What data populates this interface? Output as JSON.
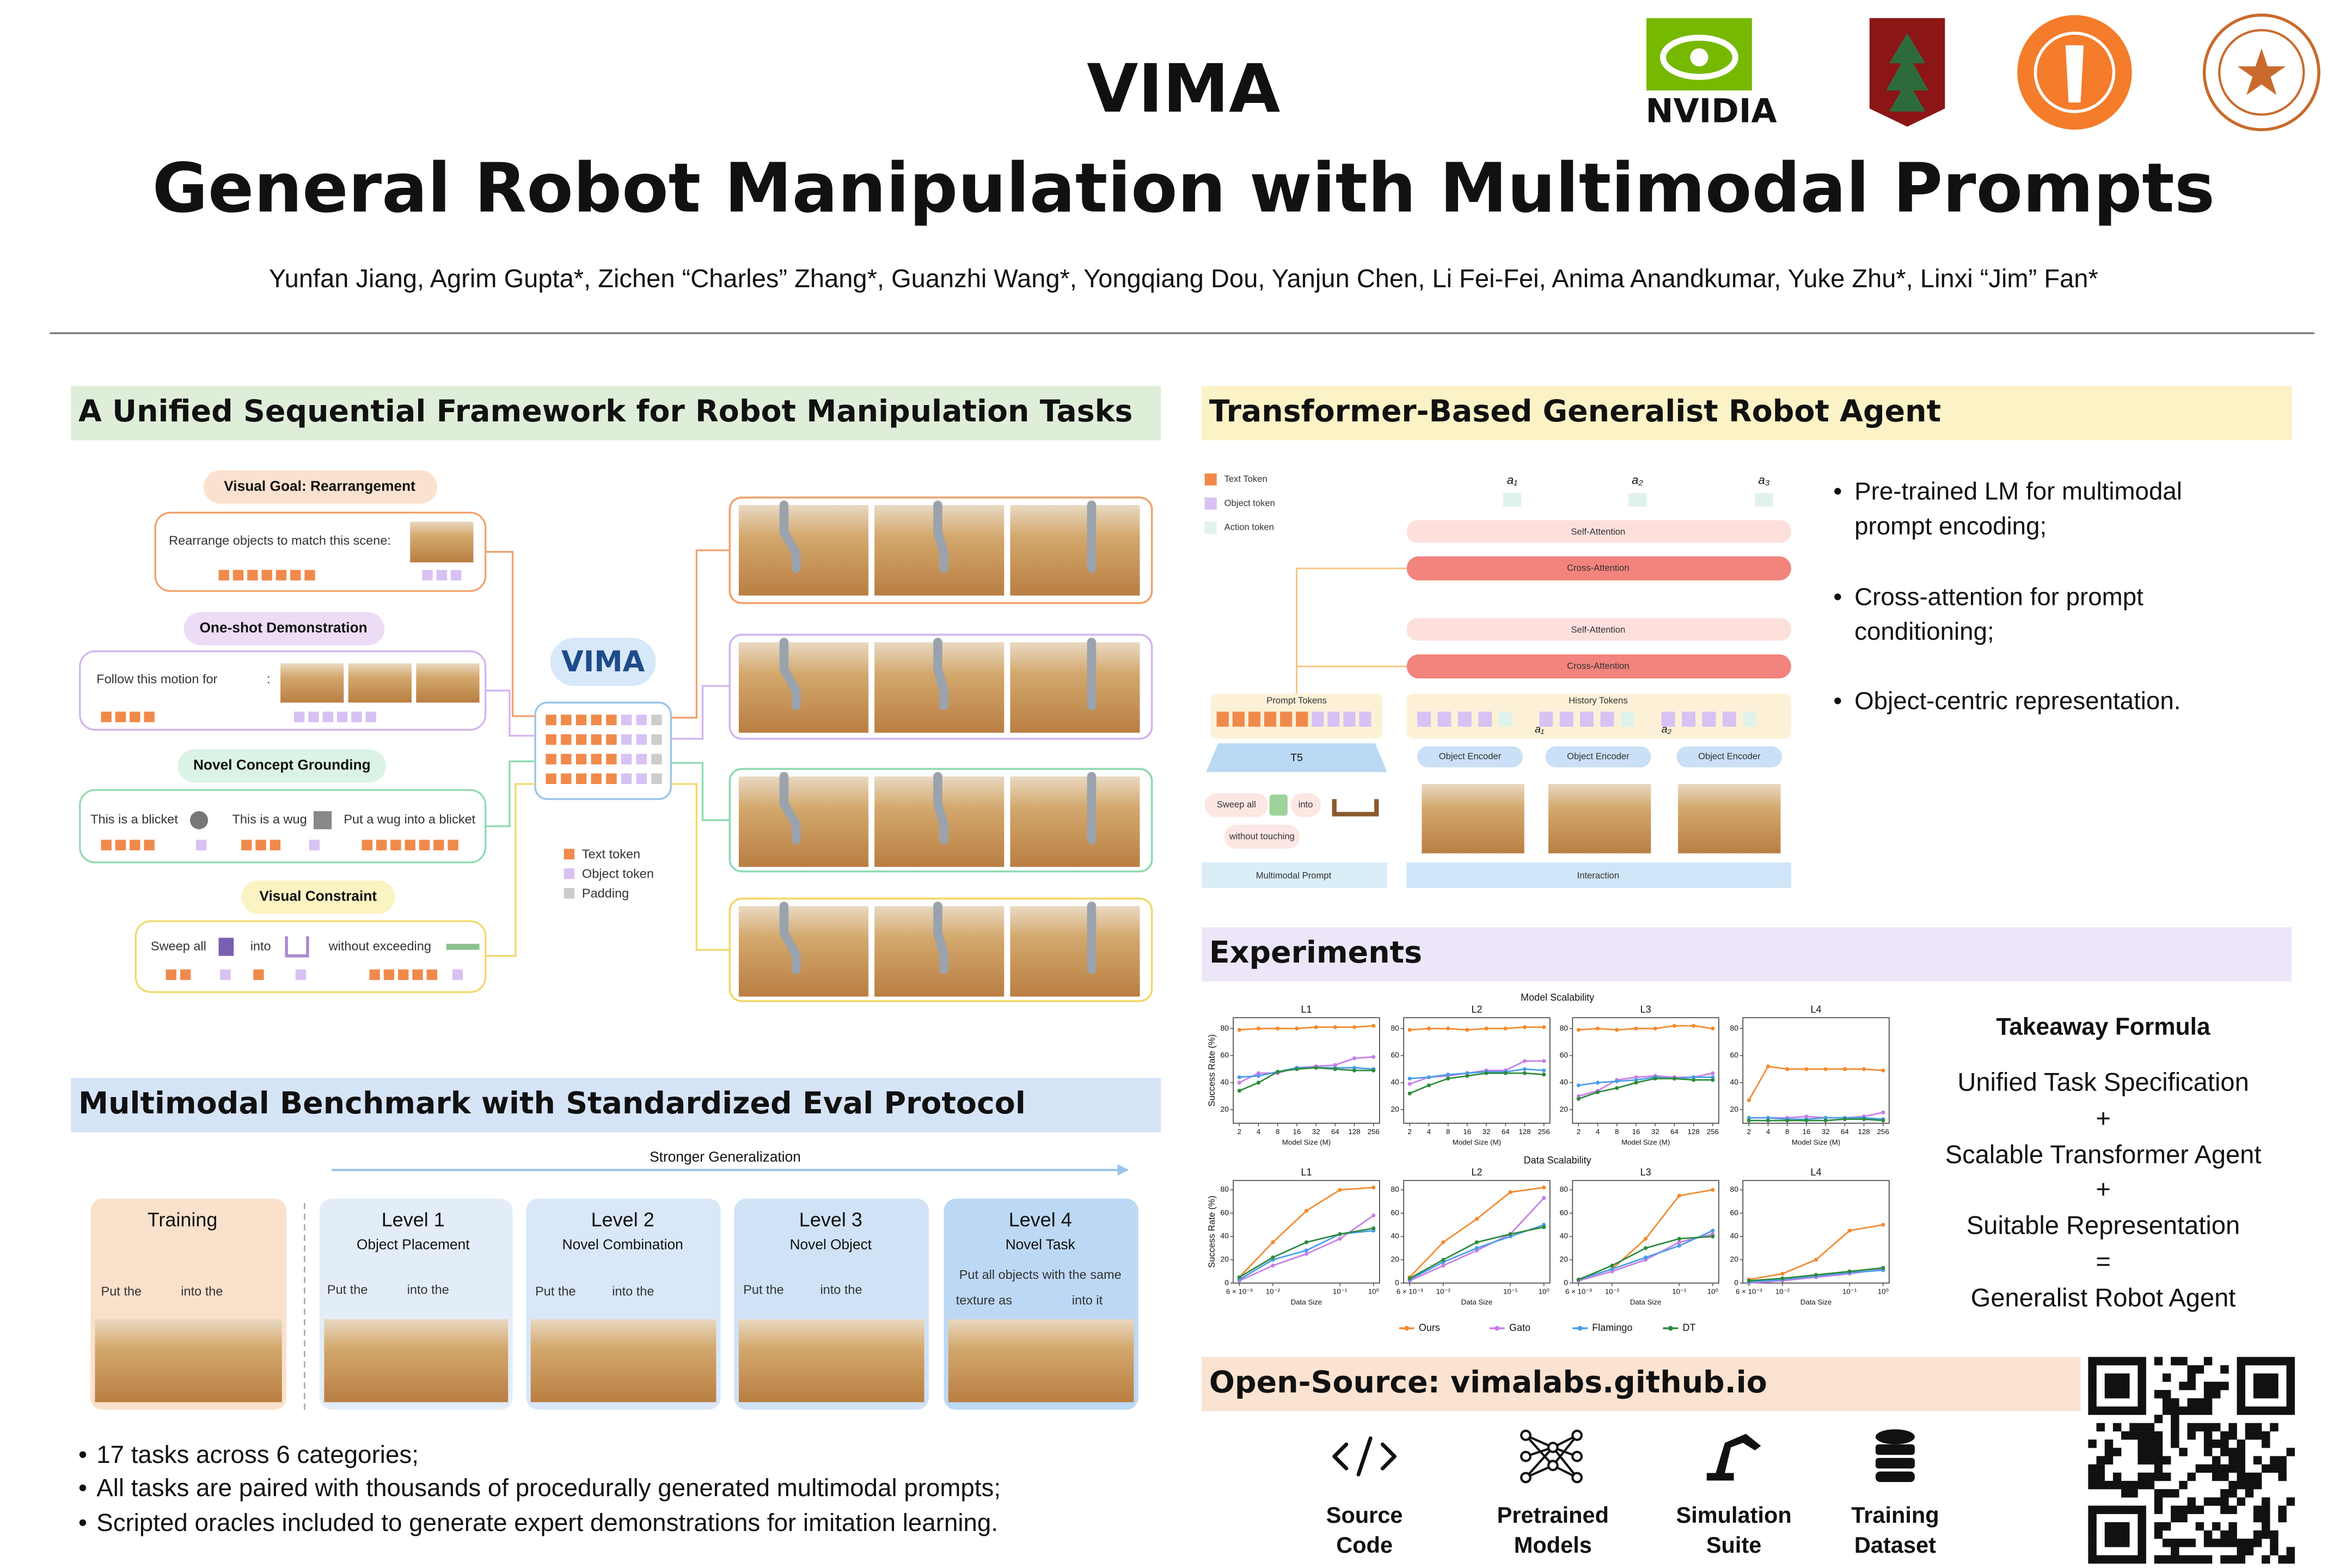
{
  "header": {
    "title_line1": "VIMA",
    "title_line2": "General Robot Manipulation with Multimodal Prompts",
    "authors": "Yunfan Jiang, Agrim Gupta*, Zichen “Charles” Zhang*, Guanzhi Wang*, Yongqiang Dou, Yanjun Chen, Li Fei-Fei, Anima Anandkumar, Yuke Zhu*, Linxi “Jim” Fan*",
    "logo_text": "NVIDIA"
  },
  "framework": {
    "title": "A Unified Sequential Framework for Robot Manipulation Tasks",
    "prompts": [
      {
        "label": "Visual Goal: Rearrangement",
        "texts": [
          "Rearrange objects to match this scene:"
        ]
      },
      {
        "label": "One-shot Demonstration",
        "texts": [
          "Follow this motion for",
          ":"
        ]
      },
      {
        "label": "Novel Concept Grounding",
        "texts": [
          "This is a blicket",
          "This is a wug",
          "Put a wug into a blicket"
        ]
      },
      {
        "label": "Visual Constraint",
        "texts": [
          "Sweep all",
          "into",
          "without exceeding"
        ]
      }
    ],
    "model": "VIMA",
    "legend": [
      "Text token",
      "Object token",
      "Padding"
    ]
  },
  "benchmark": {
    "title": "Multimodal Benchmark with Standardized Eval Protocol",
    "arrow_label": "Stronger Generalization",
    "panels": [
      {
        "title": "Training",
        "prompt": [
          "Put the",
          "into the"
        ]
      },
      {
        "title": "Level 1",
        "subtitle": "Object Placement",
        "prompt": [
          "Put the",
          "into the"
        ]
      },
      {
        "title": "Level 2",
        "subtitle": "Novel Combination",
        "prompt": [
          "Put the",
          "into the"
        ]
      },
      {
        "title": "Level 3",
        "subtitle": "Novel Object",
        "prompt": [
          "Put the",
          "into the"
        ]
      },
      {
        "title": "Level 4",
        "subtitle": "Novel Task",
        "prompt": [
          "Put all objects with the same",
          "texture as",
          "into it"
        ]
      }
    ],
    "bullets": [
      "17 tasks across 6 categories;",
      "All tasks are paired with thousands of procedurally generated multimodal prompts;",
      "Scripted oracles included to generate expert demonstrations for imitation learning."
    ]
  },
  "agent": {
    "title": "Transformer-Based Generalist Robot Agent",
    "legend": [
      "Text Token",
      "Object token",
      "Action token"
    ],
    "actions": [
      "a₁",
      "a₂",
      "a₃"
    ],
    "history_actions": [
      "a₁",
      "a₂"
    ],
    "self_attention": "Self-Attention",
    "cross_attention": "Cross-Attention",
    "prompt_tokens": "Prompt Tokens",
    "history_tokens": "History Tokens",
    "t5": "T5",
    "object_encoder": "Object Encoder",
    "prompt_words": [
      "Sweep all",
      "into",
      "without touching"
    ],
    "multimodal_prompt": "Multimodal Prompt",
    "interaction": "Interaction",
    "bullets": [
      [
        "Pre-trained LM for multimodal",
        "prompt encoding;"
      ],
      [
        "Cross-attention for prompt",
        "conditioning;"
      ],
      [
        "Object-centric representation."
      ]
    ]
  },
  "experiments": {
    "title": "Experiments",
    "y_label": "Success Rate (%)",
    "legend": [
      {
        "name": "Ours",
        "color": "#f28a30"
      },
      {
        "name": "Gato",
        "color": "#c77de6"
      },
      {
        "name": "Flamingo",
        "color": "#4a9ee8"
      },
      {
        "name": "DT",
        "color": "#2e8b3c"
      }
    ],
    "groups": [
      {
        "title": "Model Scalability",
        "x_label": "Model Size (M)",
        "categories": [
          "2",
          "4",
          "8",
          "16",
          "32",
          "64",
          "128",
          "256"
        ],
        "ylim": [
          10,
          88
        ],
        "yticks": [
          20,
          40,
          60,
          80
        ],
        "plots": [
          {
            "title": "L1",
            "values": [
              [
                79,
                80,
                80,
                80,
                81,
                81,
                81,
                82
              ],
              [
                40,
                47,
                47,
                51,
                52,
                53,
                58,
                59
              ],
              [
                44,
                45,
                48,
                51,
                51,
                51,
                51,
                50
              ],
              [
                34,
                40,
                48,
                50,
                51,
                50,
                49,
                49
              ]
            ]
          },
          {
            "title": "L2",
            "values": [
              [
                79,
                80,
                80,
                79,
                80,
                80,
                81,
                81
              ],
              [
                39,
                44,
                45,
                47,
                49,
                49,
                56,
                56
              ],
              [
                43,
                44,
                46,
                47,
                48,
                48,
                50,
                49
              ],
              [
                32,
                38,
                43,
                45,
                47,
                47,
                47,
                46
              ]
            ]
          },
          {
            "title": "L3",
            "values": [
              [
                79,
                80,
                79,
                80,
                80,
                82,
                82,
                80
              ],
              [
                30,
                34,
                42,
                44,
                45,
                44,
                44,
                47
              ],
              [
                38,
                40,
                41,
                42,
                44,
                43,
                44,
                44
              ],
              [
                28,
                33,
                36,
                40,
                43,
                43,
                42,
                42
              ]
            ]
          },
          {
            "title": "L4",
            "values": [
              [
                27,
                52,
                50,
                50,
                50,
                50,
                50,
                49
              ],
              [
                14,
                14,
                14,
                15,
                14,
                14,
                15,
                18
              ],
              [
                14,
                14,
                13,
                13,
                14,
                14,
                14,
                13
              ],
              [
                12,
                12,
                12,
                12,
                12,
                13,
                13,
                12
              ]
            ]
          }
        ]
      },
      {
        "title": "Data Scalability",
        "x_label": "Data Size",
        "categories": [
          "6 × 10⁻³",
          "10⁻²",
          null,
          "10⁻¹",
          "10⁰"
        ],
        "ylim": [
          0,
          88
        ],
        "yticks": [
          0,
          20,
          40,
          60,
          80
        ],
        "plots": [
          {
            "title": "L1",
            "values": [
              [
                5,
                35,
                62,
                80,
                82
              ],
              [
                2,
                15,
                25,
                38,
                58
              ],
              [
                3,
                20,
                28,
                42,
                45
              ],
              [
                5,
                22,
                35,
                42,
                47
              ]
            ]
          },
          {
            "title": "L2",
            "values": [
              [
                5,
                35,
                55,
                78,
                82
              ],
              [
                2,
                15,
                28,
                42,
                73
              ],
              [
                3,
                18,
                30,
                40,
                50
              ],
              [
                4,
                20,
                35,
                42,
                48
              ]
            ]
          },
          {
            "title": "L3",
            "values": [
              [
                3,
                12,
                38,
                75,
                80
              ],
              [
                2,
                10,
                20,
                35,
                42
              ],
              [
                3,
                12,
                22,
                32,
                45
              ],
              [
                3,
                15,
                30,
                38,
                40
              ]
            ]
          },
          {
            "title": "L4",
            "values": [
              [
                3,
                8,
                20,
                45,
                50
              ],
              [
                0,
                2,
                5,
                8,
                12
              ],
              [
                1,
                3,
                6,
                9,
                11
              ],
              [
                2,
                4,
                7,
                10,
                13
              ]
            ]
          }
        ]
      }
    ],
    "takeaway_title": "Takeaway Formula",
    "takeaway": [
      "Unified Task Specification",
      "+",
      "Scalable Transformer Agent",
      "+",
      "Suitable Representation",
      "=",
      "Generalist Robot Agent"
    ]
  },
  "open_source": {
    "title": "Open-Source: vimalabs.github.io",
    "items": [
      [
        "Source",
        "Code"
      ],
      [
        "Pretrained",
        "Models"
      ],
      [
        "Simulation",
        "Suite"
      ],
      [
        "Training",
        "Dataset"
      ]
    ]
  }
}
